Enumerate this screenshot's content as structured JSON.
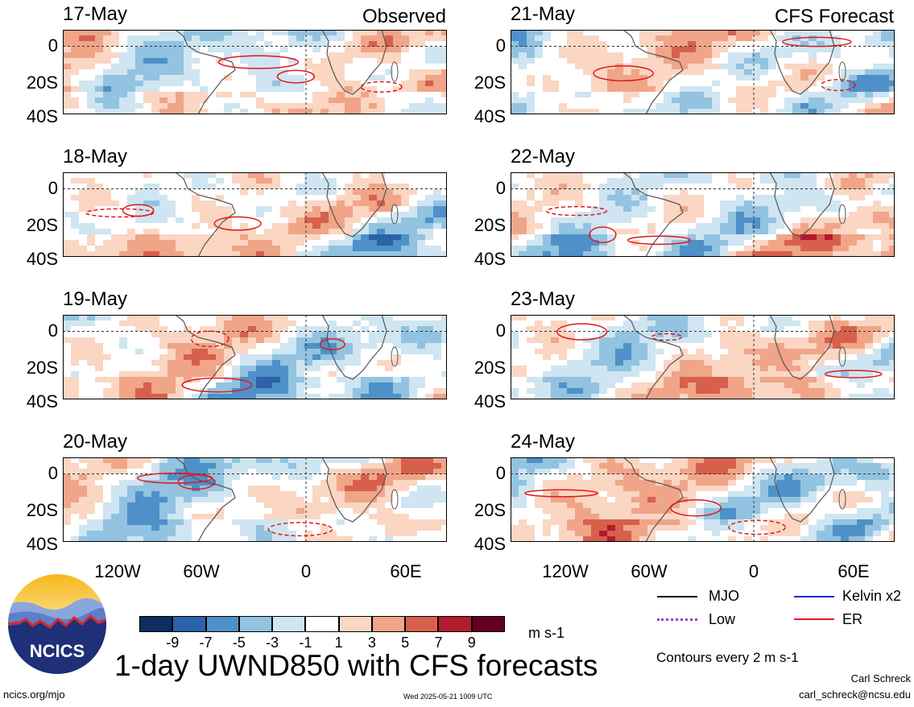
{
  "header": {
    "left_label": "Observed",
    "right_label": "CFS Forecast"
  },
  "panels": {
    "left": [
      {
        "date": "17-May"
      },
      {
        "date": "18-May"
      },
      {
        "date": "19-May"
      },
      {
        "date": "20-May"
      }
    ],
    "right": [
      {
        "date": "21-May"
      },
      {
        "date": "22-May"
      },
      {
        "date": "23-May"
      },
      {
        "date": "24-May"
      }
    ]
  },
  "axes": {
    "y_ticks": [
      "0",
      "20S",
      "40S"
    ],
    "x_ticks": [
      "120W",
      "60W",
      "0",
      "60E"
    ]
  },
  "colorbar": {
    "colors": [
      "#0d2e5e",
      "#2b62a8",
      "#4f90c8",
      "#92c3e0",
      "#cfe5f1",
      "#ffffff",
      "#fad6c3",
      "#f0a588",
      "#d7604d",
      "#b21b2c",
      "#67001f"
    ],
    "labels": [
      "-9",
      "-7",
      "-5",
      "-3",
      "-1",
      "1",
      "3",
      "5",
      "7",
      "9"
    ],
    "units": "m s-1"
  },
  "legend": {
    "mjo": "MJO",
    "kelvin": "Kelvin x2",
    "low": "Low",
    "er": "ER",
    "mjo_color": "#000000",
    "kelvin_color": "#1f2bd6",
    "low_color": "#a33cc9",
    "er_color": "#e0191c",
    "contours_note": "Contours every 2 m s-1"
  },
  "logo": {
    "text": "NCICS"
  },
  "footer": {
    "title": "1-day UWND850 with CFS forecasts",
    "url": "ncics.org/mjo",
    "timestamp": "Wed 2025-05-21 1009 UTC",
    "author": "Carl Schreck",
    "email": "carl_schreck@ncsu.edu"
  },
  "chart_data": {
    "type": "heatmap",
    "variable": "UWND850",
    "units": "m s-1",
    "x_range": [
      "140W",
      "90E"
    ],
    "y_range": [
      "10N",
      "40S"
    ],
    "x_ticks": [
      "120W",
      "60W",
      "0",
      "60E"
    ],
    "y_ticks": [
      "0",
      "20S",
      "40S"
    ],
    "color_levels": [
      -9,
      -7,
      -5,
      -3,
      -1,
      1,
      3,
      5,
      7,
      9
    ],
    "contour_interval": 2,
    "panels": [
      {
        "date": "17-May",
        "source": "Observed"
      },
      {
        "date": "18-May",
        "source": "Observed"
      },
      {
        "date": "19-May",
        "source": "Observed"
      },
      {
        "date": "20-May",
        "source": "Observed"
      },
      {
        "date": "21-May",
        "source": "CFS Forecast"
      },
      {
        "date": "22-May",
        "source": "CFS Forecast"
      },
      {
        "date": "23-May",
        "source": "CFS Forecast"
      },
      {
        "date": "24-May",
        "source": "CFS Forecast"
      }
    ],
    "contour_series": [
      "MJO",
      "Kelvin x2",
      "Low",
      "ER"
    ]
  }
}
